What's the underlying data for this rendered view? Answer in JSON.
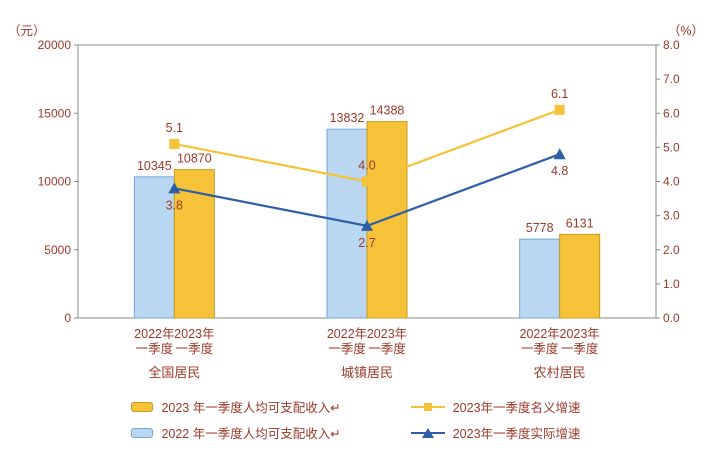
{
  "page": {
    "left_unit": "（元）",
    "right_unit": "（%）"
  },
  "colors": {
    "text": "#9c3a2a",
    "axis": "#8a8a8a",
    "bar_2022_fill": "#b9d7f1",
    "bar_2022_stroke": "#74a6d8",
    "bar_2023_fill": "#f6c238",
    "bar_2023_stroke": "#c79a22",
    "line_nominal": "#f6c238",
    "line_real": "#2d5fa6"
  },
  "chart_data": {
    "type": "bar",
    "combo": "bar+line",
    "groups": [
      "全国居民",
      "城镇居民",
      "农村居民"
    ],
    "x_tick_lines": [
      [
        "2022年",
        "一季度"
      ],
      [
        "2023年",
        "一季度"
      ]
    ],
    "bar_series": [
      {
        "name": "2022年一季度人均可支配收入",
        "values": [
          10345,
          13832,
          5778
        ],
        "labels": [
          "10345",
          "13832",
          "5778"
        ]
      },
      {
        "name": "2023年一季度人均可支配收入",
        "values": [
          10870,
          14388,
          6131
        ],
        "labels": [
          "10870",
          "14388",
          "6131"
        ]
      }
    ],
    "line_series": [
      {
        "name": "2023年一季度名义增速",
        "values": [
          5.1,
          4.0,
          6.1
        ],
        "labels": [
          "5.1",
          "4.0",
          "6.1"
        ],
        "marker": "square"
      },
      {
        "name": "2023年一季度实际增速",
        "values": [
          3.8,
          2.7,
          4.8
        ],
        "labels": [
          "3.8",
          "2.7",
          "4.8"
        ],
        "marker": "triangle"
      }
    ],
    "left_axis": {
      "label": "（元）",
      "min": 0,
      "max": 20000,
      "ticks": [
        "0",
        "5000",
        "10000",
        "15000",
        "20000"
      ]
    },
    "right_axis": {
      "label": "（%）",
      "min": 0,
      "max": 8,
      "ticks": [
        "0.0",
        "1.0",
        "2.0",
        "3.0",
        "4.0",
        "5.0",
        "6.0",
        "7.0",
        "8.0"
      ]
    },
    "legend": [
      {
        "swatch": "bar-yellow",
        "label": "2023 年一季度人均可支配收入↵"
      },
      {
        "swatch": "bar-blue",
        "label": "2022 年一季度人均可支配收入↵"
      },
      {
        "swatch": "line-square-yellow",
        "label": "2023年一季度名义增速"
      },
      {
        "swatch": "line-triangle-blue",
        "label": "2023年一季度实际增速"
      }
    ]
  }
}
